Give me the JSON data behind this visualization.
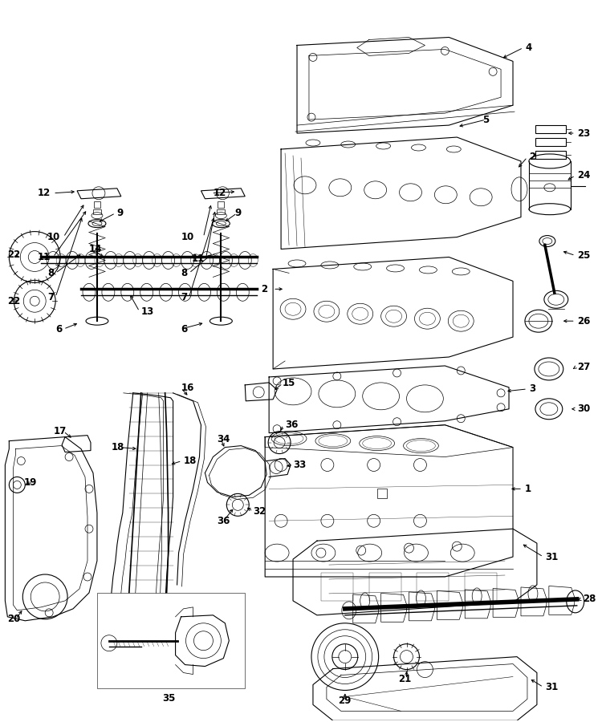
{
  "bg_color": "#ffffff",
  "fig_width": 7.5,
  "fig_height": 9.0,
  "dpi": 100,
  "lc": "#000000",
  "lw_thin": 0.5,
  "lw_med": 0.8,
  "lw_thick": 1.2,
  "label_fontsize": 8.5,
  "label_fontweight": "bold"
}
